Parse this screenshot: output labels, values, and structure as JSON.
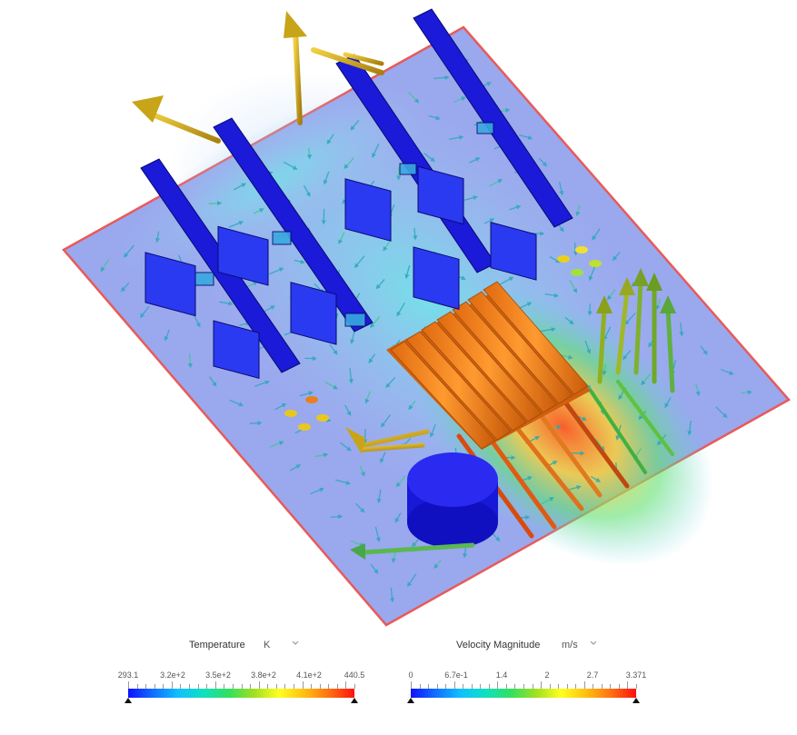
{
  "viewport": {
    "background": "#ffffff"
  },
  "legends": {
    "temperature": {
      "title": "Temperature",
      "unit": "K",
      "ticks": [
        "293.1",
        "3.2e+2",
        "3.5e+2",
        "3.8e+2",
        "4.1e+2",
        "440.5"
      ],
      "colors": [
        "#1010ff",
        "#1070ff",
        "#10c0ff",
        "#10e0c0",
        "#30e060",
        "#a0e020",
        "#ffff20",
        "#ffc010",
        "#ff7010",
        "#ff1010"
      ]
    },
    "velocity": {
      "title": "Velocity Magnitude",
      "unit": "m/s",
      "ticks": [
        "0",
        "6.7e-1",
        "1.4",
        "2",
        "2.7",
        "3.371"
      ],
      "colors": [
        "#1010ff",
        "#1070ff",
        "#10c0ff",
        "#10e0c0",
        "#30e060",
        "#a0e020",
        "#ffff20",
        "#ffc010",
        "#ff7010",
        "#ff1010"
      ]
    }
  }
}
